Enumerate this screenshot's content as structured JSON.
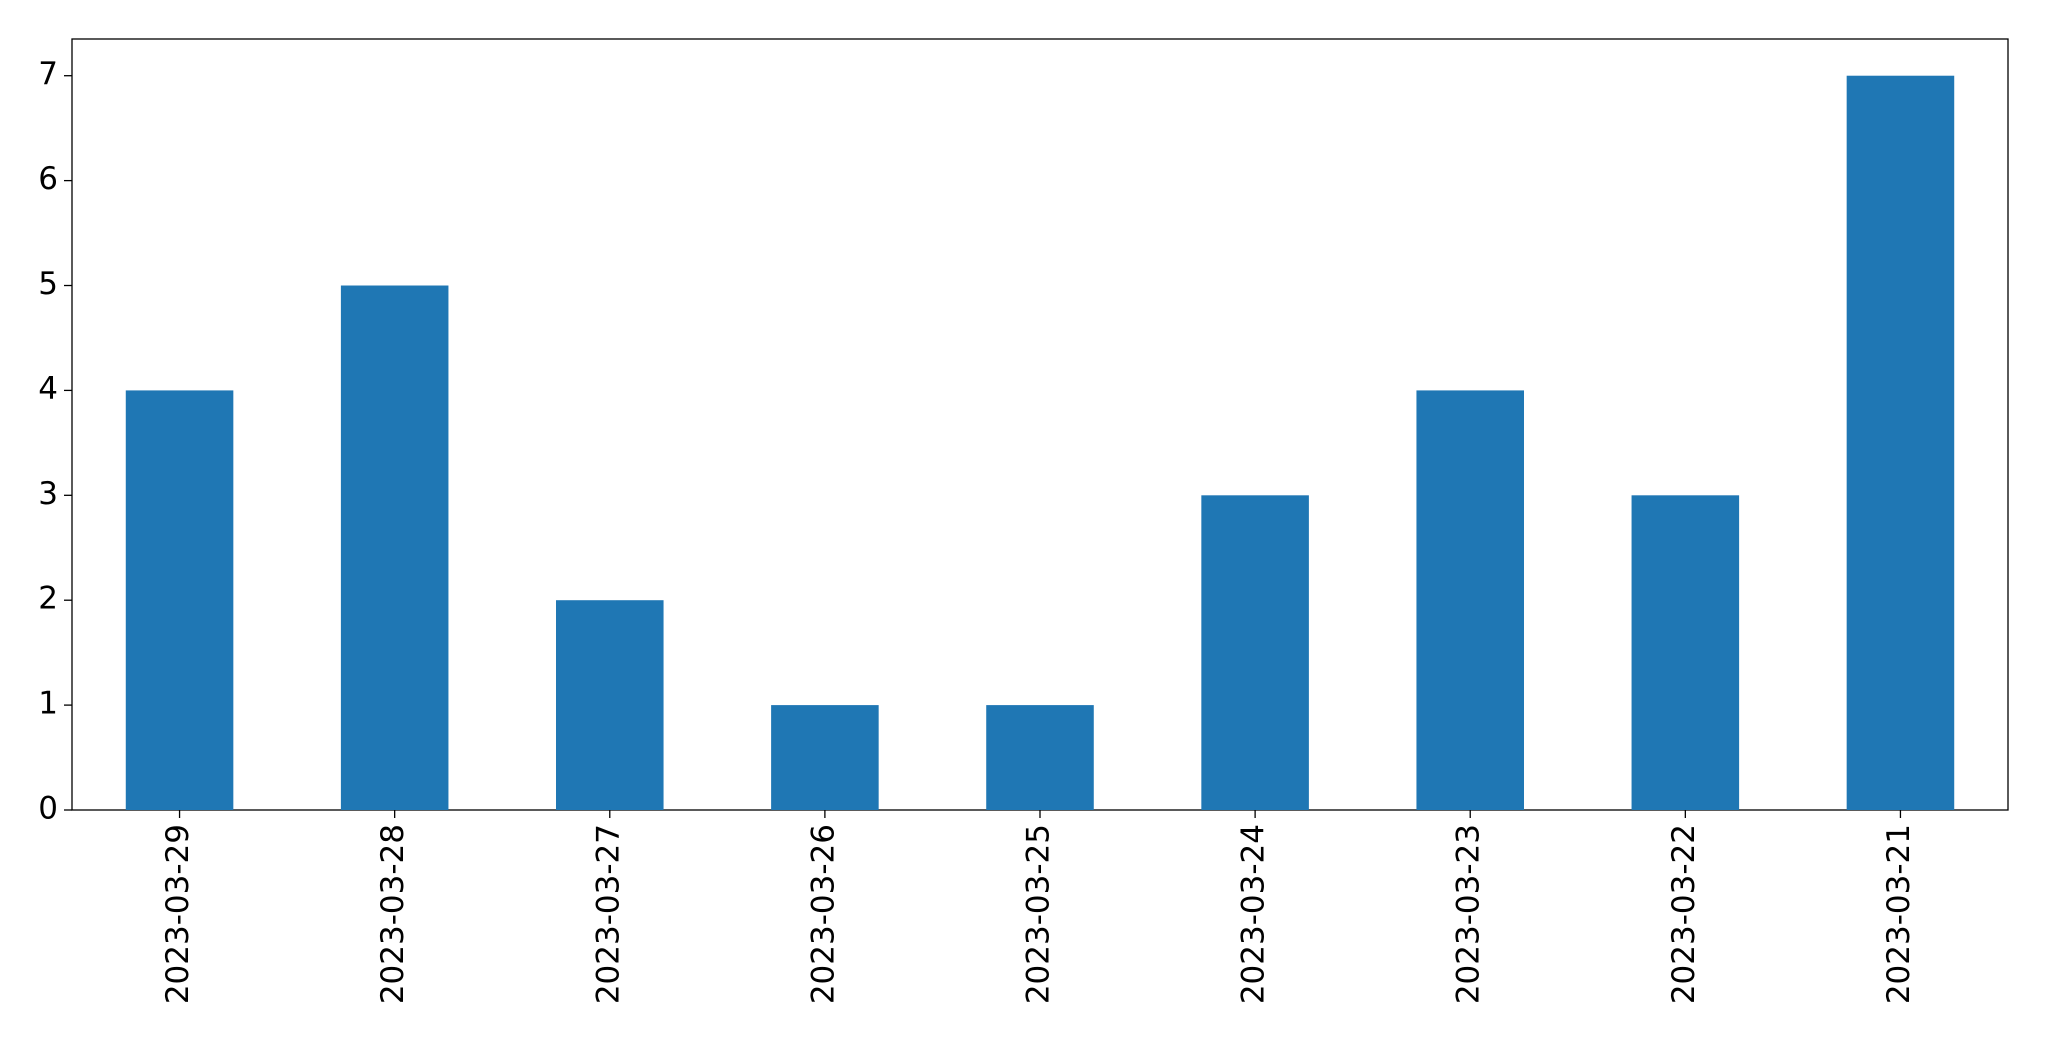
{
  "chart_data": {
    "type": "bar",
    "categories": [
      "2023-03-29",
      "2023-03-28",
      "2023-03-27",
      "2023-03-26",
      "2023-03-25",
      "2023-03-24",
      "2023-03-23",
      "2023-03-22",
      "2023-03-21"
    ],
    "values": [
      4,
      5,
      2,
      1,
      1,
      3,
      4,
      3,
      7
    ],
    "color": "#1f77b4",
    "ylim": [
      0,
      7.35
    ],
    "yticks": [
      0,
      1,
      2,
      3,
      4,
      5,
      6,
      7
    ],
    "grid": false
  }
}
